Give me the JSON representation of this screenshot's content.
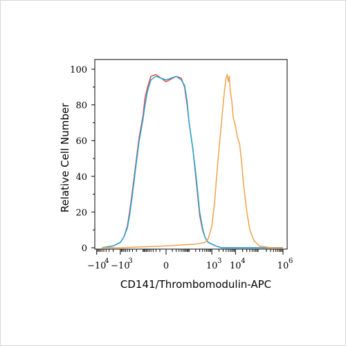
{
  "chart_data": {
    "type": "line",
    "title": "",
    "xlabel": "CD141/Thrombomodulin-APC",
    "ylabel": "Relative Cell Number",
    "ylim": [
      0,
      100
    ],
    "y_ticks": [
      {
        "value": 0,
        "label": "0"
      },
      {
        "value": 20,
        "label": "20"
      },
      {
        "value": 40,
        "label": "40"
      },
      {
        "value": 60,
        "label": "60"
      },
      {
        "value": 80,
        "label": "80"
      },
      {
        "value": 100,
        "label": "100"
      }
    ],
    "x_scale": "biexponential",
    "x_ticks": [
      {
        "label": "−10",
        "sup": "4"
      },
      {
        "label": "−10",
        "sup": "3"
      },
      {
        "label": "0",
        "sup": ""
      },
      {
        "label": "10",
        "sup": "3"
      },
      {
        "label": "10",
        "sup": "4"
      },
      {
        "label": "10",
        "sup": "6"
      }
    ],
    "grid": false,
    "legend": "none",
    "series": [
      {
        "color": "#e8413a",
        "x": [
          -6000,
          -2000,
          -1000,
          -700,
          -500,
          -400,
          -300,
          -250,
          -200,
          -150,
          -100,
          -80,
          -60,
          -40,
          -20,
          0,
          20,
          40,
          60,
          80,
          100,
          150,
          200,
          250,
          300,
          400,
          500,
          700,
          1000,
          1500,
          2500,
          10000,
          1000000
        ],
        "y": [
          0,
          1,
          3,
          6,
          12,
          20,
          32,
          40,
          50,
          62,
          74,
          84,
          90,
          96,
          97,
          93,
          96,
          95,
          90,
          80,
          70,
          55,
          40,
          28,
          18,
          10,
          6,
          3,
          2,
          1,
          0,
          0,
          0
        ]
      },
      {
        "color": "#1ba8d8",
        "x": [
          -6000,
          -2000,
          -1000,
          -700,
          -500,
          -400,
          -300,
          -250,
          -200,
          -150,
          -100,
          -80,
          -60,
          -40,
          -20,
          0,
          20,
          40,
          60,
          80,
          100,
          150,
          200,
          250,
          300,
          400,
          500,
          700,
          1000,
          1500,
          2500,
          10000,
          1000000
        ],
        "y": [
          0,
          1,
          3,
          6,
          11,
          18,
          30,
          38,
          48,
          60,
          72,
          80,
          88,
          94,
          96,
          94,
          96,
          94,
          91,
          82,
          70,
          55,
          42,
          30,
          20,
          11,
          6,
          3,
          2,
          1,
          0,
          0,
          0
        ]
      },
      {
        "color": "#f0a04a",
        "x": [
          -6000,
          -1000,
          0,
          200,
          500,
          700,
          1000,
          1300,
          1600,
          2000,
          2400,
          2800,
          3200,
          3600,
          4000,
          4500,
          5000,
          5500,
          6000,
          7000,
          8000,
          10000,
          12000,
          15000,
          18000,
          22000,
          30000,
          40000,
          60000,
          100000,
          300000,
          1000000
        ],
        "y": [
          0,
          0,
          1,
          2,
          3,
          5,
          12,
          25,
          40,
          55,
          66,
          76,
          84,
          90,
          95,
          97,
          93,
          96,
          88,
          82,
          73,
          68,
          62,
          58,
          48,
          35,
          20,
          10,
          4,
          1,
          0,
          0
        ]
      }
    ]
  }
}
